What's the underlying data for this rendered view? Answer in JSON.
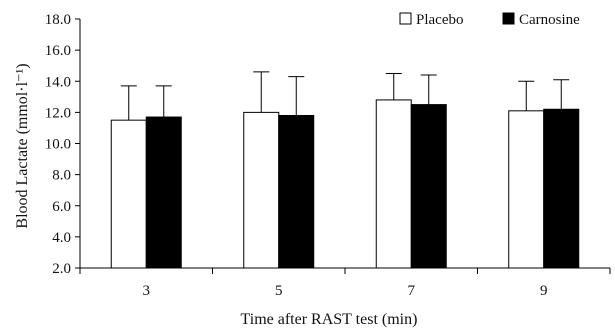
{
  "chart_data": {
    "type": "bar",
    "title": "",
    "xlabel": "Time after RAST test (min)",
    "ylabel": "Blood Lactate (mmol·l⁻¹)",
    "categories": [
      "3",
      "5",
      "7",
      "9"
    ],
    "ylim": [
      2.0,
      18.0
    ],
    "yticks": [
      "2.0",
      "4.0",
      "6.0",
      "8.0",
      "10.0",
      "12.0",
      "14.0",
      "16.0",
      "18.0"
    ],
    "grid": false,
    "legend_position": "top-right",
    "series": [
      {
        "name": "Placebo",
        "color": "#ffffff",
        "values": [
          11.5,
          12.0,
          12.8,
          12.1
        ],
        "error": [
          2.2,
          2.6,
          1.7,
          1.9
        ]
      },
      {
        "name": "Carnosine",
        "color": "#000000",
        "values": [
          11.7,
          11.8,
          12.5,
          12.2
        ],
        "error": [
          2.0,
          2.5,
          1.9,
          1.9
        ]
      }
    ]
  }
}
